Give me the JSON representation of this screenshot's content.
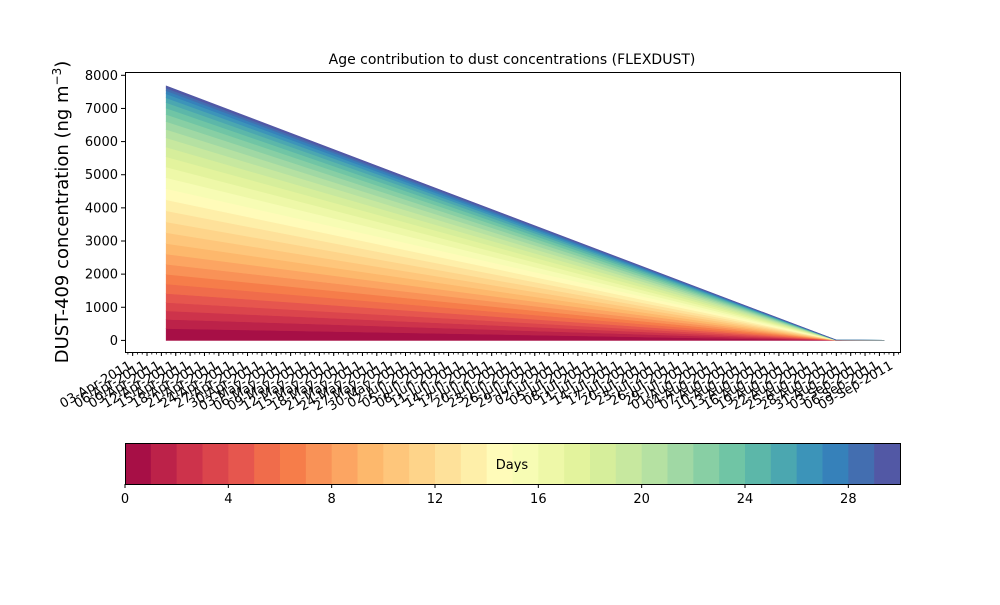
{
  "chart_data": [
    {
      "type": "area",
      "title": "Age contribution to dust concentrations (FLEXDUST)",
      "ylabel": "DUST-409 concentration (ng m",
      "ylabel_exponent": "−3",
      "ylabel_close": ")",
      "xlabel": "",
      "ylim": [
        -350,
        8100
      ],
      "yticks": [
        0,
        1000,
        2000,
        3000,
        4000,
        5000,
        6000,
        7000,
        8000
      ],
      "x_tick_labels": [
        "03-Apr-2011",
        "06-Apr-2011",
        "09-Apr-2011",
        "12-Apr-2011",
        "15-Apr-2011",
        "18-Apr-2011",
        "21-Apr-2011",
        "24-Apr-2011",
        "27-Apr-2011",
        "30-Apr-2011",
        "03-May-2011",
        "06-May-2011",
        "09-May-2011",
        "12-May-2011",
        "15-May-2011",
        "18-May-2011",
        "21-May-2011",
        "24-May-2011",
        "27-May-2011",
        "30-May-2011",
        "02-Jun-2011",
        "05-Jun-2011",
        "08-Jun-2011",
        "11-Jun-2011",
        "14-Jun-2011",
        "17-Jun-2011",
        "20-Jun-2011",
        "23-Jun-2011",
        "26-Jun-2011",
        "29-Jun-2011",
        "02-Jul-2011",
        "05-Jul-2011",
        "08-Jul-2011",
        "11-Jul-2011",
        "14-Jul-2011",
        "17-Jul-2011",
        "20-Jul-2011",
        "23-Jul-2011",
        "26-Jul-2011",
        "29-Jul-2011",
        "01-Aug-2011",
        "04-Aug-2011",
        "07-Aug-2011",
        "10-Aug-2011",
        "13-Aug-2011",
        "16-Aug-2011",
        "19-Aug-2011",
        "22-Aug-2011",
        "25-Aug-2011",
        "28-Aug-2011",
        "31-Aug-2011",
        "03-Sep-2011",
        "06-Sep-2011",
        "09-Sep-2011"
      ],
      "x_start": "10-Apr-2011",
      "x_ramp_end": "28-Aug-2011",
      "x_end": "07-Sep-2011",
      "total_start": 7680,
      "total_ramp_end": 10,
      "total_end": 5,
      "layer_weights": [
        0.045,
        0.035,
        0.032,
        0.032,
        0.034,
        0.036,
        0.037,
        0.038,
        0.039,
        0.04,
        0.041,
        0.041,
        0.042,
        0.042,
        0.042,
        0.042,
        0.04,
        0.039,
        0.037,
        0.035,
        0.032,
        0.03,
        0.027,
        0.024,
        0.021,
        0.018,
        0.015,
        0.012,
        0.01,
        0.008
      ],
      "layer_colors": [
        "#a70f46",
        "#bc2249",
        "#cd334b",
        "#db454c",
        "#e6564e",
        "#f06c4b",
        "#f67d4a",
        "#f99257",
        "#fca562",
        "#fdb86c",
        "#fec67b",
        "#fed48a",
        "#fee19a",
        "#feefa9",
        "#fffbb9",
        "#f7fcb4",
        "#eef8a8",
        "#e3f39d",
        "#d6ee9b",
        "#c7e89f",
        "#b5e1a2",
        "#a0d8a4",
        "#88cfa4",
        "#70c5a5",
        "#5cb7a9",
        "#4ba7b0",
        "#3c94b9",
        "#3681ba",
        "#436eb0",
        "#5258a5"
      ],
      "colorbar": {
        "label": "Days",
        "range": [
          0,
          30
        ],
        "ticks": [
          0,
          4,
          8,
          12,
          16,
          20,
          24,
          28
        ]
      }
    }
  ]
}
